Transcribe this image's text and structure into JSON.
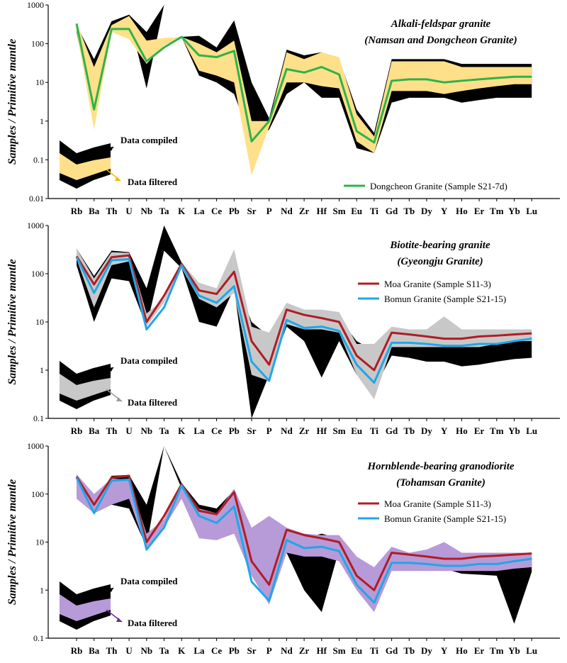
{
  "elements": [
    "Rb",
    "Ba",
    "Th",
    "U",
    "Nb",
    "Ta",
    "K",
    "La",
    "Ce",
    "Pb",
    "Sr",
    "P",
    "Nd",
    "Zr",
    "Hf",
    "Sm",
    "Eu",
    "Ti",
    "Gd",
    "Tb",
    "Dy",
    "Y",
    "Ho",
    "Er",
    "Tm",
    "Yb",
    "Lu"
  ],
  "y_axis_label": "Samples / Primitive mantle",
  "y_ticks": [
    "1000",
    "100",
    "10",
    "1",
    "0.1",
    "0.01"
  ],
  "y_ticks_short": [
    "1000",
    "100",
    "10",
    "1",
    "0.1"
  ],
  "inset": {
    "compiled": "Data compiled",
    "filtered": "Data filtered"
  },
  "colors": {
    "compiled": "#000000",
    "yellow": "#ffe08a",
    "gray": "#c8c8c8",
    "purple": "#b79ad8",
    "green": "#2db34a",
    "red": "#b01c24",
    "blue": "#1ea7e8",
    "yellow_arrow": "#f2b800",
    "gray_arrow": "#9a9a9a",
    "purple_arrow": "#6a2a9a"
  },
  "chart_data": [
    {
      "type": "line",
      "title_line1": "Alkali-feldspar granite",
      "title_line2": "(Namsan and Dongcheon Granite)",
      "ylim": [
        0.01,
        1000
      ],
      "log_scale": true,
      "compiled_upper": [
        300,
        40,
        380,
        560,
        200,
        1000,
        150,
        160,
        80,
        400,
        10,
        1.2,
        70,
        50,
        60,
        40,
        2,
        0.5,
        40,
        40,
        40,
        40,
        30,
        30,
        30,
        30,
        30
      ],
      "compiled_lower": [
        200,
        1,
        300,
        450,
        7,
        1000,
        150,
        15,
        10,
        5,
        0.3,
        0.6,
        5,
        10,
        4,
        4,
        0.2,
        0.15,
        3,
        4,
        4,
        4,
        3,
        3.5,
        4,
        4,
        4
      ],
      "filtered_upper": [
        350,
        25,
        300,
        520,
        120,
        140,
        150,
        100,
        60,
        120,
        1,
        1,
        60,
        40,
        60,
        45,
        1.5,
        0.4,
        35,
        35,
        35,
        35,
        25,
        25,
        25,
        25,
        25
      ],
      "filtered_lower": [
        220,
        0.6,
        200,
        130,
        30,
        90,
        150,
        20,
        15,
        10,
        0.04,
        0.7,
        10,
        10,
        8,
        7,
        0.3,
        0.15,
        6,
        6,
        6,
        5,
        6,
        7,
        8,
        9,
        9
      ],
      "series": [
        {
          "name": "Dongcheon Granite (Sample S21-7d)",
          "color": "#2db34a",
          "values": [
            330,
            2,
            240,
            240,
            35,
            80,
            150,
            50,
            45,
            65,
            0.3,
            1,
            22,
            18,
            25,
            16,
            0.55,
            0.28,
            11,
            12,
            12,
            10,
            11,
            12,
            13,
            14,
            14
          ]
        }
      ]
    },
    {
      "type": "line",
      "title_line1": "Biotite-bearing granite",
      "title_line2": "(Gyeongju Granite)",
      "ylim": [
        0.1,
        1000
      ],
      "log_scale": true,
      "compiled_upper": [
        330,
        90,
        300,
        280,
        50,
        1000,
        170,
        60,
        45,
        90,
        10,
        5,
        15,
        12,
        15,
        12,
        4,
        2.5,
        5,
        5,
        5,
        5,
        5,
        5,
        5,
        5,
        5
      ],
      "compiled_lower": [
        150,
        10,
        80,
        70,
        8,
        300,
        130,
        10,
        8,
        50,
        0.1,
        0.8,
        8,
        4,
        0.7,
        4,
        0.8,
        0.4,
        2,
        1.8,
        1.5,
        1.5,
        1.2,
        1.3,
        1.5,
        1.7,
        1.8
      ],
      "filtered_upper": [
        330,
        80,
        280,
        270,
        15,
        30,
        170,
        65,
        50,
        320,
        8,
        6,
        25,
        18,
        18,
        16,
        3.5,
        3.5,
        8,
        7,
        7,
        13,
        7,
        7,
        7,
        7,
        7
      ],
      "filtered_lower": [
        200,
        20,
        150,
        180,
        8,
        25,
        130,
        30,
        20,
        40,
        0.8,
        0.6,
        9,
        7,
        7,
        6,
        0.8,
        0.25,
        3,
        3,
        3,
        3,
        3,
        3,
        3.5,
        4,
        4
      ],
      "series": [
        {
          "name": "Moa Granite (Sample S11-3)",
          "color": "#b01c24",
          "values": [
            230,
            60,
            220,
            240,
            10,
            35,
            160,
            45,
            38,
            110,
            4,
            1.3,
            18,
            14,
            12,
            10,
            2,
            1,
            6,
            5.5,
            5,
            4.5,
            4.5,
            5,
            5.2,
            5.5,
            5.8
          ]
        },
        {
          "name": "Bomun Granite (Sample S21-15)",
          "color": "#1ea7e8",
          "values": [
            220,
            40,
            190,
            200,
            7,
            20,
            150,
            35,
            25,
            55,
            1.5,
            0.6,
            11,
            7.5,
            8,
            6.5,
            1.3,
            0.55,
            3.7,
            3.7,
            3.5,
            3.2,
            3.2,
            3.5,
            3.5,
            4,
            4.5
          ]
        }
      ]
    },
    {
      "type": "line",
      "title_line1": "Hornblende-bearing granodiorite",
      "title_line2": "(Tohamsan Granite)",
      "ylim": [
        0.1,
        1000
      ],
      "log_scale": true,
      "compiled_upper": [
        200,
        60,
        240,
        250,
        60,
        1000,
        170,
        60,
        50,
        120,
        18,
        18,
        15,
        12,
        15,
        12,
        4,
        2,
        5,
        5,
        5,
        4,
        4,
        4,
        5,
        5,
        5
      ],
      "compiled_lower": [
        180,
        40,
        60,
        50,
        8,
        1000,
        130,
        40,
        30,
        90,
        10,
        8,
        6,
        1,
        0.35,
        7,
        1.3,
        0.5,
        3,
        3,
        2.7,
        2.8,
        2.2,
        2.1,
        2,
        0.2,
        2.4
      ],
      "filtered_upper": [
        260,
        100,
        210,
        200,
        15,
        30,
        170,
        50,
        40,
        130,
        20,
        35,
        20,
        15,
        14,
        14,
        5,
        3,
        8,
        6,
        7,
        10,
        6,
        6,
        6,
        6,
        6
      ],
      "filtered_lower": [
        80,
        40,
        60,
        80,
        7,
        20,
        80,
        12,
        11,
        15,
        2,
        0.5,
        6,
        5,
        5,
        4,
        1,
        0.35,
        2.5,
        2.5,
        2.5,
        2.5,
        2.5,
        2.5,
        2.5,
        2.8,
        3
      ],
      "series": [
        {
          "name": "Moa Granite (Sample S11-3)",
          "color": "#b01c24",
          "values": [
            230,
            60,
            220,
            240,
            10,
            35,
            160,
            45,
            38,
            110,
            4,
            1.3,
            18,
            14,
            12,
            10,
            2,
            1,
            6,
            5.5,
            5,
            4.5,
            4.5,
            5,
            5.2,
            5.5,
            5.8
          ]
        },
        {
          "name": "Bomun Granite (Sample S21-15)",
          "color": "#1ea7e8",
          "values": [
            220,
            40,
            190,
            200,
            7,
            20,
            150,
            35,
            25,
            55,
            1.5,
            0.6,
            11,
            7.5,
            8,
            6.5,
            1.3,
            0.55,
            3.7,
            3.7,
            3.5,
            3.2,
            3.2,
            3.5,
            3.5,
            4,
            4.5
          ]
        }
      ]
    }
  ]
}
